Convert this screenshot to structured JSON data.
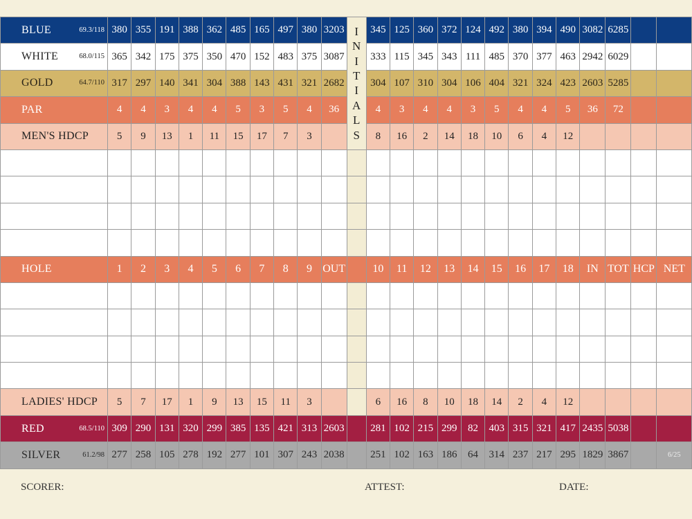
{
  "initials_letters": [
    "I",
    "N",
    "I",
    "T",
    "I",
    "A",
    "L",
    "S"
  ],
  "tees": [
    {
      "key": "blue",
      "label": "BLUE",
      "rating": "69.3/118",
      "front": [
        "380",
        "355",
        "191",
        "388",
        "362",
        "485",
        "165",
        "497",
        "380"
      ],
      "out": "3203",
      "back": [
        "345",
        "125",
        "360",
        "372",
        "124",
        "492",
        "380",
        "394",
        "490"
      ],
      "in": "3082",
      "tot": "6285"
    },
    {
      "key": "white",
      "label": "WHITE",
      "rating": "68.0/115",
      "front": [
        "365",
        "342",
        "175",
        "375",
        "350",
        "470",
        "152",
        "483",
        "375"
      ],
      "out": "3087",
      "back": [
        "333",
        "115",
        "345",
        "343",
        "111",
        "485",
        "370",
        "377",
        "463"
      ],
      "in": "2942",
      "tot": "6029"
    },
    {
      "key": "gold",
      "label": "GOLD",
      "rating": "64.7/110",
      "front": [
        "317",
        "297",
        "140",
        "341",
        "304",
        "388",
        "143",
        "431",
        "321"
      ],
      "out": "2682",
      "back": [
        "304",
        "107",
        "310",
        "304",
        "106",
        "404",
        "321",
        "324",
        "423"
      ],
      "in": "2603",
      "tot": "5285"
    }
  ],
  "par": {
    "label": "PAR",
    "front": [
      "4",
      "4",
      "3",
      "4",
      "4",
      "5",
      "3",
      "5",
      "4"
    ],
    "out": "36",
    "back": [
      "4",
      "3",
      "4",
      "4",
      "3",
      "5",
      "4",
      "4",
      "5"
    ],
    "in": "36",
    "tot": "72"
  },
  "mens_hdcp": {
    "label": "MEN'S HDCP",
    "front": [
      "5",
      "9",
      "13",
      "1",
      "11",
      "15",
      "17",
      "7",
      "3"
    ],
    "back": [
      "8",
      "16",
      "2",
      "14",
      "18",
      "10",
      "6",
      "4",
      "12"
    ]
  },
  "hole": {
    "label": "HOLE",
    "front": [
      "1",
      "2",
      "3",
      "4",
      "5",
      "6",
      "7",
      "8",
      "9"
    ],
    "out": "OUT",
    "back": [
      "10",
      "11",
      "12",
      "13",
      "14",
      "15",
      "16",
      "17",
      "18"
    ],
    "in": "IN",
    "tot": "TOT",
    "hcp": "HCP",
    "net": "NET"
  },
  "ladies_hdcp": {
    "label": "LADIES' HDCP",
    "front": [
      "5",
      "7",
      "17",
      "1",
      "9",
      "13",
      "15",
      "11",
      "3"
    ],
    "back": [
      "6",
      "16",
      "8",
      "10",
      "18",
      "14",
      "2",
      "4",
      "12"
    ]
  },
  "tees_lower": [
    {
      "key": "red",
      "label": "RED",
      "rating": "68.5/110",
      "front": [
        "309",
        "290",
        "131",
        "320",
        "299",
        "385",
        "135",
        "421",
        "313"
      ],
      "out": "2603",
      "back": [
        "281",
        "102",
        "215",
        "299",
        "82",
        "403",
        "315",
        "321",
        "417"
      ],
      "in": "2435",
      "tot": "5038"
    },
    {
      "key": "silver",
      "label": "SILVER",
      "rating": "61.2/98",
      "front": [
        "277",
        "258",
        "105",
        "278",
        "192",
        "277",
        "101",
        "307",
        "243"
      ],
      "out": "2038",
      "back": [
        "251",
        "102",
        "163",
        "186",
        "64",
        "314",
        "237",
        "217",
        "295"
      ],
      "in": "1829",
      "tot": "3867",
      "badge": "6/25"
    }
  ],
  "footer": {
    "scorer": "SCORER:",
    "attest": "ATTEST:",
    "date": "DATE:"
  },
  "colors": {
    "blue": "#0d3d82",
    "gold": "#d3b66a",
    "orange": "#e67e5c",
    "peach": "#f5c7b2",
    "red": "#a31f42",
    "silver": "#a9a9a9",
    "cream": "#f5f0dc"
  }
}
